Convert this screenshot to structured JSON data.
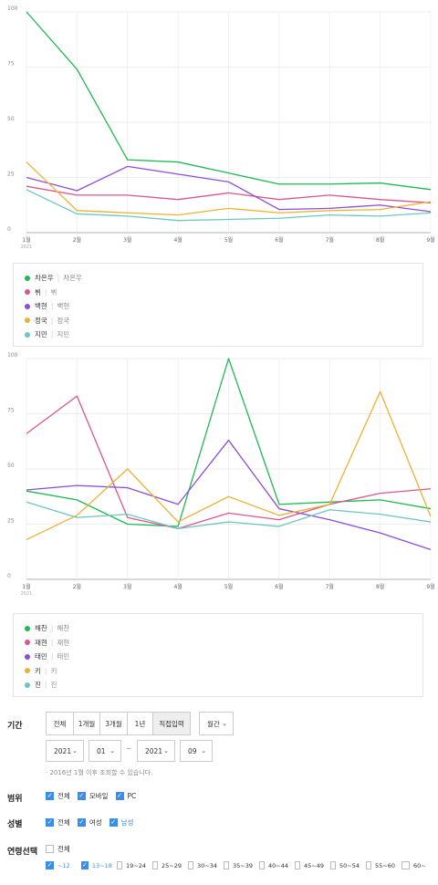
{
  "chart_data": [
    {
      "type": "line",
      "x": [
        "1월",
        "2월",
        "3월",
        "4월",
        "5월",
        "6월",
        "7월",
        "8월",
        "9월"
      ],
      "x_sub": "2021",
      "ylim": [
        0,
        100
      ],
      "yticks": [
        0,
        25,
        50,
        75,
        100
      ],
      "grid": true,
      "series": [
        {
          "name": "차은우",
          "sub": "차은우",
          "color": "#1db954",
          "values": [
            100,
            74,
            33,
            32,
            27,
            22,
            22,
            22.5,
            19.5
          ]
        },
        {
          "name": "뷔",
          "sub": "뷔",
          "color": "#d9578e",
          "values": [
            21,
            17,
            17,
            15,
            18,
            15,
            17,
            15,
            13.5
          ]
        },
        {
          "name": "백현",
          "sub": "백현",
          "color": "#8a4fd8",
          "values": [
            25,
            19,
            30,
            26.5,
            23,
            10.5,
            11,
            12.5,
            9.5
          ]
        },
        {
          "name": "정국",
          "sub": "정국",
          "color": "#eab234",
          "values": [
            32,
            10,
            9,
            8,
            11,
            9,
            10,
            10.5,
            14
          ]
        },
        {
          "name": "지민",
          "sub": "지민",
          "color": "#6cc7bf",
          "values": [
            19.5,
            8.5,
            7.5,
            5.5,
            6,
            6.5,
            8,
            7.5,
            9
          ]
        }
      ]
    },
    {
      "type": "line",
      "x": [
        "1월",
        "2월",
        "3월",
        "4월",
        "5월",
        "6월",
        "7월",
        "8월",
        "9월"
      ],
      "x_sub": "2021",
      "ylim": [
        0,
        100
      ],
      "yticks": [
        0,
        25,
        50,
        75,
        100
      ],
      "grid": true,
      "series": [
        {
          "name": "해찬",
          "sub": "해찬",
          "color": "#1db954",
          "values": [
            40,
            36,
            25,
            24,
            100,
            34,
            35,
            36,
            32
          ]
        },
        {
          "name": "재현",
          "sub": "재현",
          "color": "#d9578e",
          "values": [
            66,
            83,
            28,
            23,
            30,
            27,
            34,
            39,
            41
          ]
        },
        {
          "name": "태민",
          "sub": "태민",
          "color": "#8a4fd8",
          "values": [
            40.5,
            42.5,
            41.5,
            34,
            63,
            32,
            27,
            21,
            13.5
          ]
        },
        {
          "name": "키",
          "sub": "키",
          "color": "#eab234",
          "values": [
            18,
            29,
            50,
            26,
            37.5,
            29,
            34,
            85,
            28.5
          ]
        },
        {
          "name": "진",
          "sub": "진",
          "color": "#6cc7bf",
          "values": [
            35,
            28,
            29.5,
            23,
            26,
            24,
            31.5,
            29.5,
            26
          ]
        }
      ]
    }
  ],
  "controls": {
    "period_label": "기간",
    "period_buttons": [
      "전체",
      "1개월",
      "3개월",
      "1년",
      "직접입력"
    ],
    "period_active": "직접입력",
    "interval": "월간",
    "start_year": "2021",
    "start_month": "01",
    "range_sep": "~",
    "end_year": "2021",
    "end_month": "09",
    "note": "· 2016년 1월 이후 조회할 수 있습니다.",
    "scope_label": "범위",
    "scope_options": [
      {
        "label": "전체",
        "checked": true
      },
      {
        "label": "모바일",
        "checked": true
      },
      {
        "label": "PC",
        "checked": true
      }
    ],
    "gender_label": "성별",
    "gender_options": [
      {
        "label": "전체",
        "checked": true
      },
      {
        "label": "여성",
        "checked": true
      },
      {
        "label": "남성",
        "checked": true
      }
    ],
    "age_label": "연령선택",
    "age_all": {
      "label": "전체",
      "checked": false
    },
    "age_options": [
      {
        "label": "~12",
        "checked": true
      },
      {
        "label": "13~18",
        "checked": true
      },
      {
        "label": "19~24",
        "checked": false
      },
      {
        "label": "25~29",
        "checked": false
      },
      {
        "label": "30~34",
        "checked": false
      },
      {
        "label": "35~39",
        "checked": false
      },
      {
        "label": "40~44",
        "checked": false
      },
      {
        "label": "45~49",
        "checked": false
      },
      {
        "label": "50~54",
        "checked": false
      },
      {
        "label": "55~60",
        "checked": false
      },
      {
        "label": "60~",
        "checked": false
      }
    ]
  },
  "colors": {
    "accent": "#3a8ee6",
    "grid": "#e8e8e8"
  }
}
